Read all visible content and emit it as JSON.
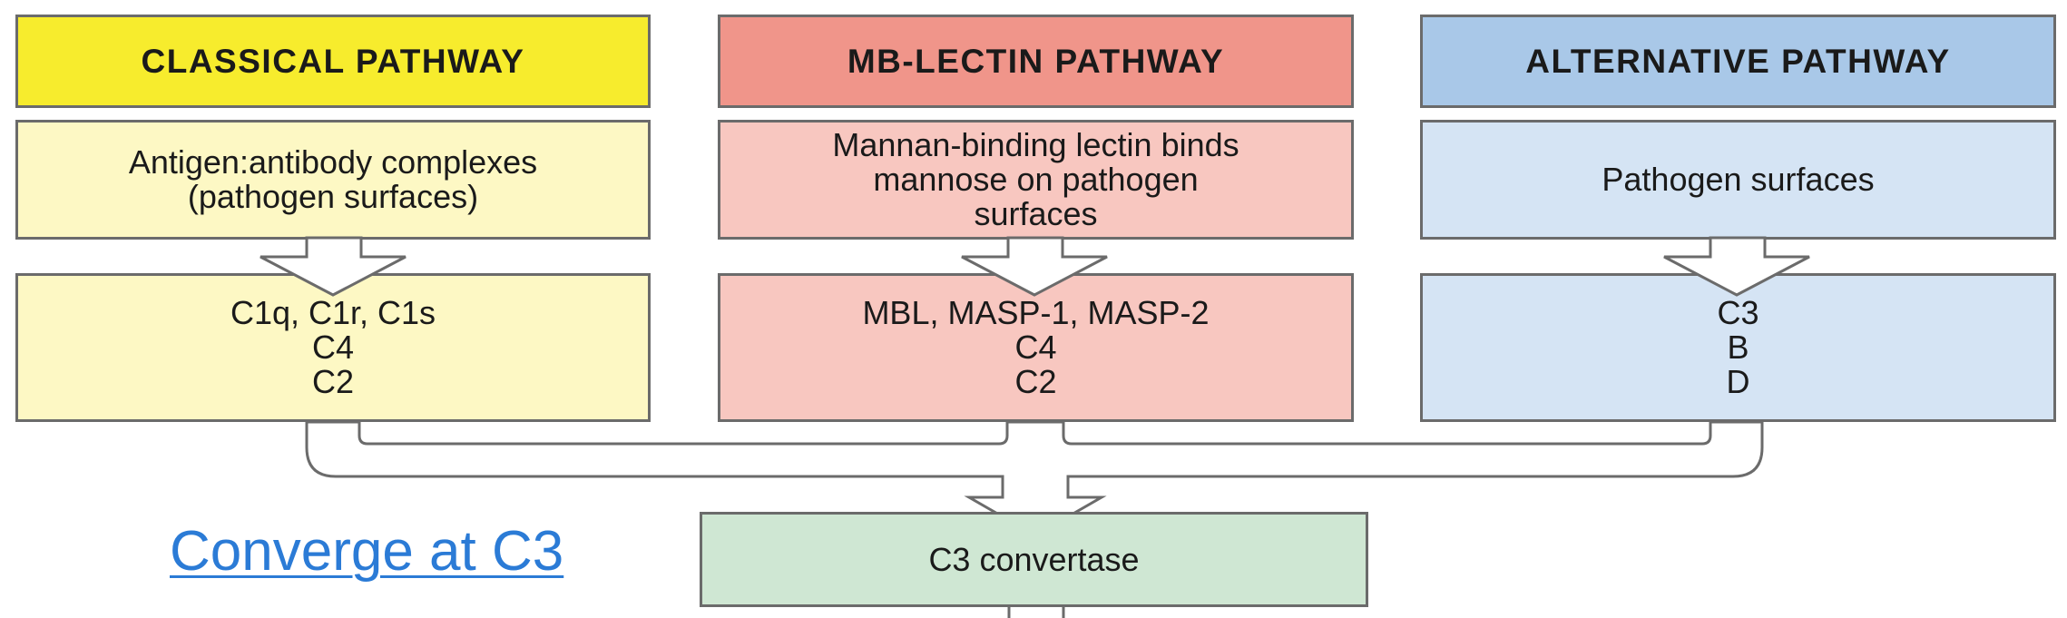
{
  "pathways": [
    {
      "header": "CLASSICAL  PATHWAY",
      "trigger": [
        "Antigen:antibody  complexes",
        "(pathogen surfaces)"
      ],
      "components": [
        "C1q, C1r, C1s",
        "C4",
        "C2"
      ],
      "colors": {
        "header": "#f7ec2d",
        "body": "#fdf8c4"
      }
    },
    {
      "header": "MB-LECTIN  PATHWAY",
      "trigger": [
        "Mannan-binding lectin binds",
        "mannose on pathogen",
        "surfaces"
      ],
      "components": [
        "MBL, MASP-1, MASP-2",
        "C4",
        "C2"
      ],
      "colors": {
        "header": "#f0958a",
        "body": "#f8c7c0"
      }
    },
    {
      "header": "ALTERNATIVE  PATHWAY",
      "trigger": [
        "Pathogen surfaces"
      ],
      "components": [
        "C3",
        "B",
        "D"
      ],
      "colors": {
        "header": "#a9c8e8",
        "body": "#d5e4f4"
      }
    }
  ],
  "convergence": {
    "label": "C3 convertase",
    "color": "#cfe7d3"
  },
  "link": {
    "text": "Converge at C3",
    "color": "#2b7bd6"
  }
}
